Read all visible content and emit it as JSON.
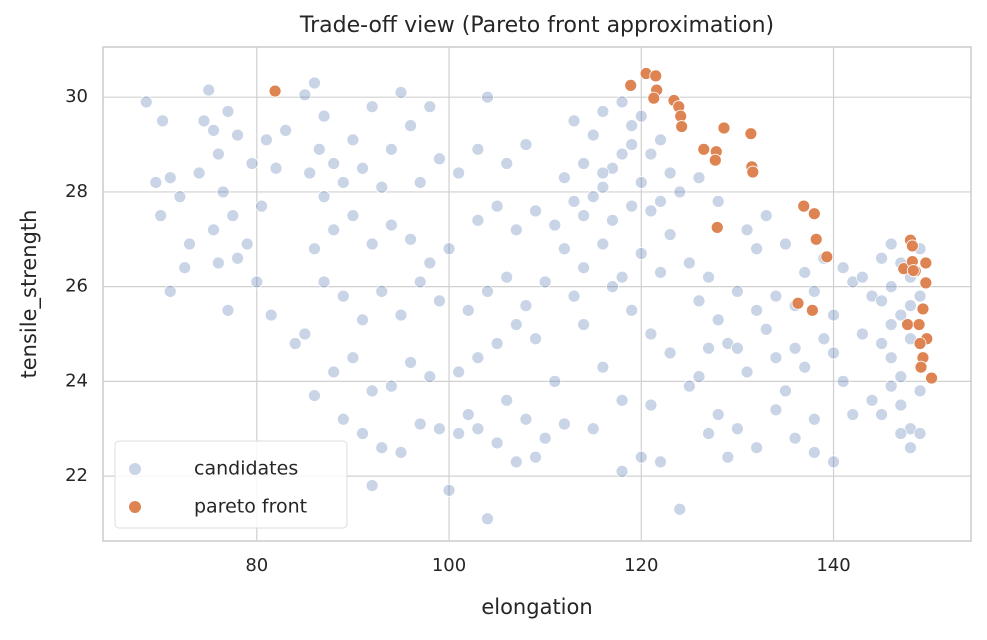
{
  "chart_data": {
    "type": "scatter",
    "title": "Trade-off view (Pareto front approximation)",
    "x_label": "elongation",
    "y_label": "tensile_strength",
    "xlim": [
      64.0,
      154.3
    ],
    "ylim": [
      20.63,
      31.06
    ],
    "xticks": [
      80,
      100,
      120,
      140
    ],
    "yticks": [
      22,
      24,
      26,
      28,
      30
    ],
    "grid": true,
    "legend": "lower left",
    "series": [
      {
        "name": "candidates",
        "color": "#4c72b0",
        "x": [
          68.5,
          70.2,
          69.5,
          71,
          72,
          70,
          73,
          74.5,
          75,
          75.5,
          76,
          74,
          77,
          78,
          76.5,
          77.5,
          75.5,
          76,
          78,
          79,
          77,
          72.5,
          71,
          79.5,
          81,
          80.5,
          82,
          83,
          80,
          81.5,
          85,
          86,
          87,
          86.5,
          85.5,
          88,
          87,
          89,
          90,
          91,
          92,
          93,
          94,
          95,
          96,
          97,
          98,
          99,
          88,
          90,
          92,
          94,
          96,
          98,
          86,
          87,
          89,
          91,
          93,
          95,
          97,
          99,
          85,
          88,
          90,
          92,
          94,
          96,
          98,
          89,
          91,
          93,
          95,
          97,
          99,
          92,
          84,
          86,
          100,
          101,
          102,
          103,
          104,
          105,
          101,
          103,
          105,
          107,
          109,
          102,
          104,
          106,
          108,
          110,
          100,
          103,
          105,
          107,
          109,
          101,
          103,
          106,
          108,
          104,
          106,
          108,
          110,
          107,
          109,
          111,
          112,
          111,
          112,
          113,
          114,
          115,
          116,
          117,
          118,
          119,
          120,
          121,
          122,
          123,
          113,
          116,
          118,
          120,
          124,
          112,
          114,
          116,
          118,
          120,
          122,
          115,
          117,
          119,
          121,
          123,
          117,
          119,
          121,
          123,
          114,
          116,
          118,
          120,
          122,
          118,
          124,
          115,
          121,
          113,
          119,
          116,
          114,
          122,
          125,
          126,
          127,
          128,
          129,
          130,
          131,
          132,
          133,
          134,
          135,
          136,
          137,
          138,
          139,
          140,
          141,
          142,
          143,
          144,
          126,
          128,
          130,
          132,
          134,
          136,
          138,
          140,
          127,
          129,
          131,
          133,
          135,
          137,
          139,
          141,
          143,
          126,
          128,
          130,
          132,
          134,
          136,
          138,
          140,
          142,
          144,
          125,
          127,
          145,
          146,
          147,
          148,
          149,
          145,
          146,
          147,
          148,
          149,
          145,
          146,
          147,
          148,
          149,
          146,
          147,
          148,
          147,
          149,
          148,
          146,
          145,
          149
        ],
        "values": [
          29.9,
          29.5,
          28.2,
          28.3,
          27.9,
          27.5,
          26.9,
          29.5,
          30.15,
          29.3,
          28.8,
          28.4,
          29.7,
          29.2,
          28,
          27.5,
          27.2,
          26.5,
          26.6,
          26.9,
          25.5,
          26.4,
          25.9,
          28.6,
          29.1,
          27.7,
          28.5,
          29.3,
          26.1,
          25.4,
          30.05,
          30.3,
          29.6,
          28.9,
          28.4,
          28.6,
          27.9,
          28.2,
          29.1,
          28.5,
          29.8,
          28.1,
          28.9,
          30.1,
          29.4,
          28.2,
          29.8,
          28.7,
          27.2,
          27.5,
          26.9,
          27.3,
          27,
          26.5,
          26.8,
          26.1,
          25.8,
          25.3,
          25.9,
          25.4,
          26.1,
          25.7,
          25,
          24.2,
          24.5,
          23.8,
          23.9,
          24.4,
          24.1,
          23.2,
          22.9,
          22.6,
          22.5,
          23.1,
          23.0,
          21.8,
          24.8,
          23.7,
          21.7,
          22.9,
          23.3,
          23.0,
          21.1,
          22.7,
          24.2,
          24.5,
          24.8,
          25.2,
          24.9,
          25.5,
          25.9,
          26.2,
          25.6,
          26.1,
          26.8,
          27.4,
          27.7,
          27.2,
          27.6,
          28.4,
          28.9,
          28.6,
          29,
          30.0,
          23.6,
          23.2,
          22.8,
          22.3,
          22.4,
          24.0,
          23.1,
          27.3,
          28.3,
          27.8,
          28.6,
          29.2,
          28.1,
          27.4,
          28.8,
          29.4,
          28.2,
          27.6,
          29.1,
          28.4,
          29.5,
          29.7,
          29.9,
          29.6,
          28.0,
          26.8,
          26.4,
          26.9,
          26.2,
          26.7,
          26.3,
          27.9,
          28.5,
          27.7,
          28.8,
          27.1,
          26.0,
          25.5,
          25.0,
          24.6,
          25.2,
          24.3,
          23.6,
          22.4,
          22.3,
          22.1,
          21.3,
          23.0,
          23.5,
          25.8,
          29.0,
          28.4,
          27.5,
          27.8,
          26.5,
          25.7,
          26.2,
          25.3,
          24.8,
          25.9,
          24.2,
          26.8,
          25.1,
          24.5,
          23.8,
          25.6,
          24.3,
          23.2,
          24.9,
          25.4,
          24.0,
          26.1,
          25.0,
          23.6,
          24.1,
          23.3,
          23.0,
          22.6,
          23.4,
          22.8,
          22.5,
          22.3,
          22.9,
          22.4,
          27.2,
          27.5,
          26.9,
          26.3,
          26.6,
          26.4,
          26.2,
          28.3,
          27.8,
          24.7,
          25.5,
          25.8,
          24.7,
          25.9,
          24.6,
          23.3,
          25.8,
          23.9,
          24.7,
          26.6,
          26.0,
          25.4,
          24.9,
          24.3,
          24.8,
          23.9,
          23.5,
          23.0,
          23.8,
          25.7,
          25.2,
          26.5,
          26.2,
          25.8,
          24.5,
          24.1,
          22.6,
          22.9,
          22.9,
          25.6,
          26.9,
          23.3,
          26.8
        ]
      },
      {
        "name": "pareto front",
        "color": "#dd8452",
        "x": [
          81.9,
          118.9,
          120.5,
          121.5,
          121.6,
          121.3,
          123.4,
          123.9,
          124.1,
          124.2,
          126.5,
          127.8,
          127.7,
          128.6,
          131.4,
          131.5,
          131.6,
          136.9,
          138.0,
          127.9,
          138.2,
          139.3,
          136.3,
          137.8,
          148.0,
          148.2,
          147.3,
          148.2,
          148.5,
          149.6,
          149.6,
          149.3,
          147.7,
          148.9,
          149.7,
          149.0,
          149.3,
          149.1,
          150.2,
          148.3
        ],
        "values": [
          30.13,
          30.25,
          30.5,
          30.45,
          30.15,
          29.98,
          29.93,
          29.8,
          29.6,
          29.38,
          28.9,
          28.85,
          28.67,
          29.35,
          29.23,
          28.53,
          28.42,
          27.7,
          27.54,
          27.25,
          27.0,
          26.63,
          25.65,
          25.5,
          26.98,
          26.86,
          26.38,
          26.53,
          26.33,
          26.5,
          26.08,
          25.53,
          25.2,
          25.2,
          24.9,
          24.8,
          24.5,
          24.3,
          24.07,
          26.34
        ]
      }
    ]
  }
}
